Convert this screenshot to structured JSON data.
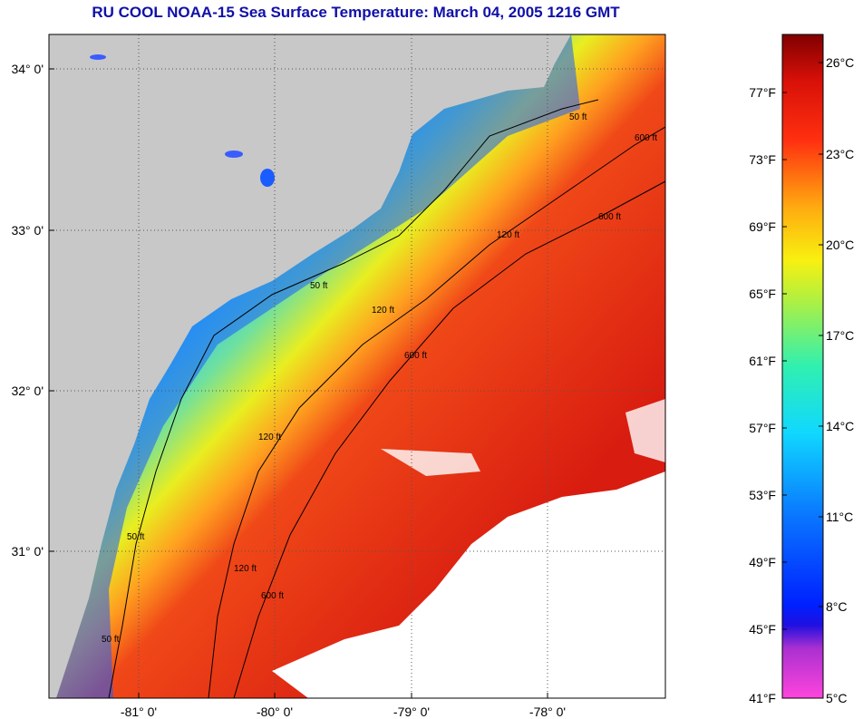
{
  "title": "RU COOL  NOAA-15  Sea Surface Temperature:  March 04, 2005 1216 GMT",
  "map": {
    "lon_labels": [
      "-81° 0'",
      "-80° 0'",
      "-79° 0'",
      "-78° 0'"
    ],
    "lat_labels": [
      "34° 0'",
      "33° 0'",
      "32° 0'",
      "31° 0'"
    ],
    "contour_labels": [
      "50 ft",
      "120 ft",
      "600 ft",
      "50 ft",
      "120 ft",
      "600 ft",
      "50 ft",
      "120 ft",
      "600 ft",
      "50 ft",
      "120 ft",
      "600 ft"
    ],
    "colors": {
      "land": "#c8c8c8",
      "cloud": "#ffffff",
      "cold_coastal": "#1a5cff",
      "mid_shelf": "#33cc99",
      "gulf_stream": "#e82a10"
    }
  },
  "colorbar": {
    "fahrenheit_labels": [
      "77°F",
      "73°F",
      "69°F",
      "65°F",
      "61°F",
      "57°F",
      "53°F",
      "49°F",
      "45°F",
      "41°F"
    ],
    "celsius_labels": [
      "26°C",
      "23°C",
      "20°C",
      "17°C",
      "14°C",
      "11°C",
      "8°C",
      "5°C"
    ],
    "min_c": 5,
    "max_c": 28
  }
}
